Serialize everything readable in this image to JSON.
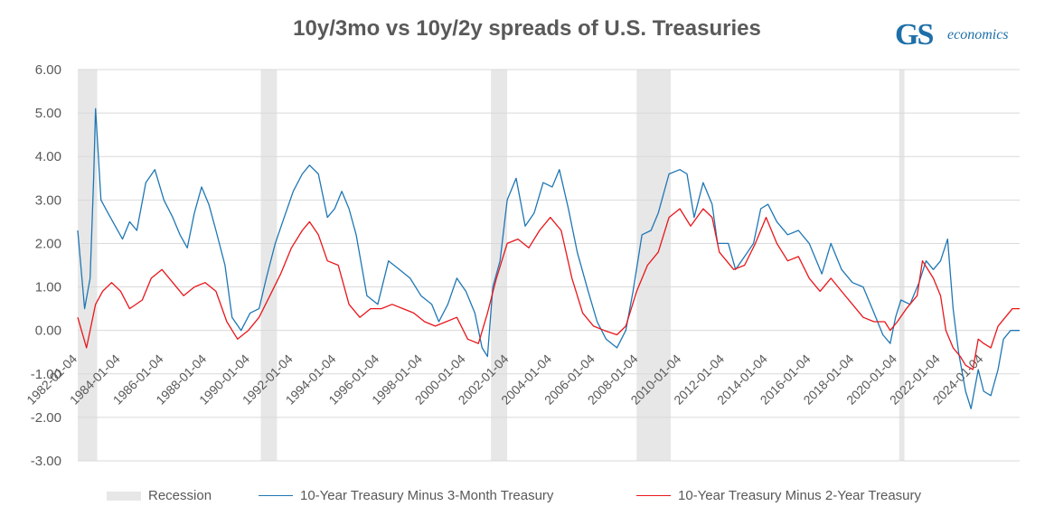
{
  "title": "10y/3mo vs 10y/2y spreads of U.S. Treasuries",
  "logo": {
    "mark": "GS",
    "text": "economics"
  },
  "legend": {
    "recession": "Recession",
    "series1": "10-Year Treasury Minus 3-Month Treasury",
    "series2": "10-Year Treasury Minus 2-Year Treasury"
  },
  "colors": {
    "series1": "#1f77b4",
    "series2": "#e8161b",
    "recession": "#e7e7e7",
    "grid": "#d9d9d9"
  },
  "chart_data": {
    "type": "line",
    "title": "10y/3mo vs 10y/2y spreads of U.S. Treasuries",
    "xlabel": "",
    "ylabel": "",
    "ylim": [
      -3,
      6
    ],
    "yticks": [
      "6.00",
      "5.00",
      "4.00",
      "3.00",
      "2.00",
      "1.00",
      "0.00",
      "-1.00",
      "-2.00",
      "-3.00"
    ],
    "xlim": [
      "1982-01-04",
      "2025-09-01"
    ],
    "xticks": [
      "1982-01-04",
      "1984-01-04",
      "1986-01-04",
      "1988-01-04",
      "1990-01-04",
      "1992-01-04",
      "1994-01-04",
      "1996-01-04",
      "1998-01-04",
      "2000-01-04",
      "2002-01-04",
      "2004-01-04",
      "2006-01-04",
      "2008-01-04",
      "2010-01-04",
      "2012-01-04",
      "2014-01-04",
      "2016-01-04",
      "2018-01-04",
      "2020-01-04",
      "2022-01-04",
      "2024-01-04"
    ],
    "grid": true,
    "legend_position": "bottom",
    "recessions": [
      [
        "1982-01-04",
        "1982-11-30"
      ],
      [
        "1990-07-01",
        "1991-03-31"
      ],
      [
        "2001-03-01",
        "2001-11-30"
      ],
      [
        "2007-12-01",
        "2009-06-30"
      ],
      [
        "2020-02-01",
        "2020-04-30"
      ]
    ],
    "series": [
      {
        "name": "10-Year Treasury Minus 3-Month Treasury",
        "points": [
          [
            "1982-01-04",
            2.3
          ],
          [
            "1982-05-01",
            0.5
          ],
          [
            "1982-08-01",
            1.2
          ],
          [
            "1982-10-01",
            3.5
          ],
          [
            "1982-11-01",
            5.1
          ],
          [
            "1983-02-01",
            3.0
          ],
          [
            "1983-06-01",
            2.7
          ],
          [
            "1983-10-01",
            2.4
          ],
          [
            "1984-02-01",
            2.1
          ],
          [
            "1984-06-01",
            2.5
          ],
          [
            "1984-10-01",
            2.3
          ],
          [
            "1985-03-01",
            3.4
          ],
          [
            "1985-08-01",
            3.7
          ],
          [
            "1986-01-01",
            3.0
          ],
          [
            "1986-06-01",
            2.6
          ],
          [
            "1986-10-01",
            2.2
          ],
          [
            "1987-02-01",
            1.9
          ],
          [
            "1987-06-01",
            2.7
          ],
          [
            "1987-10-01",
            3.3
          ],
          [
            "1988-02-01",
            2.9
          ],
          [
            "1988-06-01",
            2.3
          ],
          [
            "1988-11-01",
            1.5
          ],
          [
            "1989-03-01",
            0.3
          ],
          [
            "1989-08-01",
            0.0
          ],
          [
            "1990-01-01",
            0.4
          ],
          [
            "1990-06-01",
            0.5
          ],
          [
            "1990-10-01",
            1.2
          ],
          [
            "1991-03-01",
            2.0
          ],
          [
            "1991-08-01",
            2.6
          ],
          [
            "1992-01-01",
            3.2
          ],
          [
            "1992-06-01",
            3.6
          ],
          [
            "1992-10-01",
            3.8
          ],
          [
            "1993-03-01",
            3.6
          ],
          [
            "1993-08-01",
            2.6
          ],
          [
            "1993-12-01",
            2.8
          ],
          [
            "1994-04-01",
            3.2
          ],
          [
            "1994-08-01",
            2.8
          ],
          [
            "1994-12-01",
            2.2
          ],
          [
            "1995-06-01",
            0.8
          ],
          [
            "1995-12-01",
            0.6
          ],
          [
            "1996-06-01",
            1.6
          ],
          [
            "1996-12-01",
            1.4
          ],
          [
            "1997-06-01",
            1.2
          ],
          [
            "1997-12-01",
            0.8
          ],
          [
            "1998-06-01",
            0.6
          ],
          [
            "1998-10-01",
            0.2
          ],
          [
            "1999-03-01",
            0.6
          ],
          [
            "1999-08-01",
            1.2
          ],
          [
            "2000-01-01",
            0.9
          ],
          [
            "2000-06-01",
            0.4
          ],
          [
            "2000-10-01",
            -0.4
          ],
          [
            "2001-01-01",
            -0.6
          ],
          [
            "2001-04-01",
            1.0
          ],
          [
            "2001-08-01",
            1.6
          ],
          [
            "2001-12-01",
            3.0
          ],
          [
            "2002-05-01",
            3.5
          ],
          [
            "2002-10-01",
            2.4
          ],
          [
            "2003-03-01",
            2.7
          ],
          [
            "2003-08-01",
            3.4
          ],
          [
            "2004-01-01",
            3.3
          ],
          [
            "2004-05-01",
            3.7
          ],
          [
            "2004-10-01",
            2.8
          ],
          [
            "2005-03-01",
            1.8
          ],
          [
            "2005-09-01",
            0.9
          ],
          [
            "2006-02-01",
            0.2
          ],
          [
            "2006-07-01",
            -0.2
          ],
          [
            "2007-01-01",
            -0.4
          ],
          [
            "2007-06-01",
            0.0
          ],
          [
            "2007-10-01",
            0.9
          ],
          [
            "2008-03-01",
            2.2
          ],
          [
            "2008-08-01",
            2.3
          ],
          [
            "2008-12-01",
            2.7
          ],
          [
            "2009-06-01",
            3.6
          ],
          [
            "2009-12-01",
            3.7
          ],
          [
            "2010-04-01",
            3.6
          ],
          [
            "2010-08-01",
            2.6
          ],
          [
            "2011-01-01",
            3.4
          ],
          [
            "2011-06-01",
            2.9
          ],
          [
            "2011-09-01",
            2.0
          ],
          [
            "2012-03-01",
            2.0
          ],
          [
            "2012-07-01",
            1.4
          ],
          [
            "2012-12-01",
            1.7
          ],
          [
            "2013-05-01",
            2.0
          ],
          [
            "2013-09-01",
            2.8
          ],
          [
            "2014-01-01",
            2.9
          ],
          [
            "2014-06-01",
            2.5
          ],
          [
            "2014-12-01",
            2.2
          ],
          [
            "2015-06-01",
            2.3
          ],
          [
            "2015-12-01",
            2.0
          ],
          [
            "2016-07-01",
            1.3
          ],
          [
            "2016-12-01",
            2.0
          ],
          [
            "2017-06-01",
            1.4
          ],
          [
            "2017-12-01",
            1.1
          ],
          [
            "2018-06-01",
            1.0
          ],
          [
            "2018-12-01",
            0.4
          ],
          [
            "2019-05-01",
            -0.1
          ],
          [
            "2019-09-01",
            -0.3
          ],
          [
            "2019-12-01",
            0.3
          ],
          [
            "2020-03-01",
            0.7
          ],
          [
            "2020-08-01",
            0.6
          ],
          [
            "2021-01-01",
            1.1
          ],
          [
            "2021-05-01",
            1.6
          ],
          [
            "2021-09-01",
            1.4
          ],
          [
            "2022-01-01",
            1.6
          ],
          [
            "2022-05-01",
            2.1
          ],
          [
            "2022-08-01",
            0.5
          ],
          [
            "2022-11-01",
            -0.5
          ],
          [
            "2023-03-01",
            -1.4
          ],
          [
            "2023-06-01",
            -1.8
          ],
          [
            "2023-10-01",
            -0.9
          ],
          [
            "2024-01-01",
            -1.4
          ],
          [
            "2024-05-01",
            -1.5
          ],
          [
            "2024-09-01",
            -0.9
          ],
          [
            "2024-12-01",
            -0.2
          ],
          [
            "2025-04-01",
            0.0
          ],
          [
            "2025-09-01",
            0.0
          ]
        ]
      },
      {
        "name": "10-Year Treasury Minus 2-Year Treasury",
        "points": [
          [
            "1982-01-04",
            0.3
          ],
          [
            "1982-06-01",
            -0.4
          ],
          [
            "1982-11-01",
            0.6
          ],
          [
            "1983-03-01",
            0.9
          ],
          [
            "1983-08-01",
            1.1
          ],
          [
            "1984-01-01",
            0.9
          ],
          [
            "1984-06-01",
            0.5
          ],
          [
            "1985-01-01",
            0.7
          ],
          [
            "1985-06-01",
            1.2
          ],
          [
            "1985-12-01",
            1.4
          ],
          [
            "1986-06-01",
            1.1
          ],
          [
            "1986-12-01",
            0.8
          ],
          [
            "1987-06-01",
            1.0
          ],
          [
            "1987-12-01",
            1.1
          ],
          [
            "1988-06-01",
            0.9
          ],
          [
            "1988-12-01",
            0.2
          ],
          [
            "1989-06-01",
            -0.2
          ],
          [
            "1989-12-01",
            0.0
          ],
          [
            "1990-06-01",
            0.3
          ],
          [
            "1990-12-01",
            0.8
          ],
          [
            "1991-06-01",
            1.3
          ],
          [
            "1991-12-01",
            1.9
          ],
          [
            "1992-06-01",
            2.3
          ],
          [
            "1992-10-01",
            2.5
          ],
          [
            "1993-03-01",
            2.2
          ],
          [
            "1993-08-01",
            1.6
          ],
          [
            "1994-02-01",
            1.5
          ],
          [
            "1994-08-01",
            0.6
          ],
          [
            "1995-02-01",
            0.3
          ],
          [
            "1995-08-01",
            0.5
          ],
          [
            "1996-02-01",
            0.5
          ],
          [
            "1996-08-01",
            0.6
          ],
          [
            "1997-02-01",
            0.5
          ],
          [
            "1997-08-01",
            0.4
          ],
          [
            "1998-02-01",
            0.2
          ],
          [
            "1998-08-01",
            0.1
          ],
          [
            "1999-02-01",
            0.2
          ],
          [
            "1999-08-01",
            0.3
          ],
          [
            "2000-02-01",
            -0.2
          ],
          [
            "2000-08-01",
            -0.3
          ],
          [
            "2001-01-01",
            0.4
          ],
          [
            "2001-06-01",
            1.2
          ],
          [
            "2001-12-01",
            2.0
          ],
          [
            "2002-06-01",
            2.1
          ],
          [
            "2002-12-01",
            1.9
          ],
          [
            "2003-06-01",
            2.3
          ],
          [
            "2003-12-01",
            2.6
          ],
          [
            "2004-06-01",
            2.3
          ],
          [
            "2004-12-01",
            1.2
          ],
          [
            "2005-06-01",
            0.4
          ],
          [
            "2005-12-01",
            0.1
          ],
          [
            "2006-06-01",
            0.0
          ],
          [
            "2007-01-01",
            -0.1
          ],
          [
            "2007-06-01",
            0.1
          ],
          [
            "2007-12-01",
            0.9
          ],
          [
            "2008-06-01",
            1.5
          ],
          [
            "2008-12-01",
            1.8
          ],
          [
            "2009-06-01",
            2.6
          ],
          [
            "2009-12-01",
            2.8
          ],
          [
            "2010-06-01",
            2.4
          ],
          [
            "2011-01-01",
            2.8
          ],
          [
            "2011-06-01",
            2.6
          ],
          [
            "2011-10-01",
            1.8
          ],
          [
            "2012-06-01",
            1.4
          ],
          [
            "2012-12-01",
            1.5
          ],
          [
            "2013-06-01",
            2.0
          ],
          [
            "2013-12-01",
            2.6
          ],
          [
            "2014-06-01",
            2.0
          ],
          [
            "2014-12-01",
            1.6
          ],
          [
            "2015-06-01",
            1.7
          ],
          [
            "2015-12-01",
            1.2
          ],
          [
            "2016-06-01",
            0.9
          ],
          [
            "2016-12-01",
            1.2
          ],
          [
            "2017-06-01",
            0.9
          ],
          [
            "2017-12-01",
            0.6
          ],
          [
            "2018-06-01",
            0.3
          ],
          [
            "2018-12-01",
            0.2
          ],
          [
            "2019-06-01",
            0.2
          ],
          [
            "2019-09-01",
            0.0
          ],
          [
            "2020-01-01",
            0.2
          ],
          [
            "2020-06-01",
            0.5
          ],
          [
            "2020-12-01",
            0.8
          ],
          [
            "2021-03-01",
            1.6
          ],
          [
            "2021-09-01",
            1.2
          ],
          [
            "2022-01-01",
            0.8
          ],
          [
            "2022-04-01",
            0.0
          ],
          [
            "2022-08-01",
            -0.4
          ],
          [
            "2022-12-01",
            -0.6
          ],
          [
            "2023-03-01",
            -0.8
          ],
          [
            "2023-07-01",
            -0.9
          ],
          [
            "2023-10-01",
            -0.2
          ],
          [
            "2024-01-01",
            -0.3
          ],
          [
            "2024-05-01",
            -0.4
          ],
          [
            "2024-09-01",
            0.1
          ],
          [
            "2025-01-01",
            0.3
          ],
          [
            "2025-05-01",
            0.5
          ],
          [
            "2025-09-01",
            0.5
          ]
        ]
      }
    ]
  }
}
